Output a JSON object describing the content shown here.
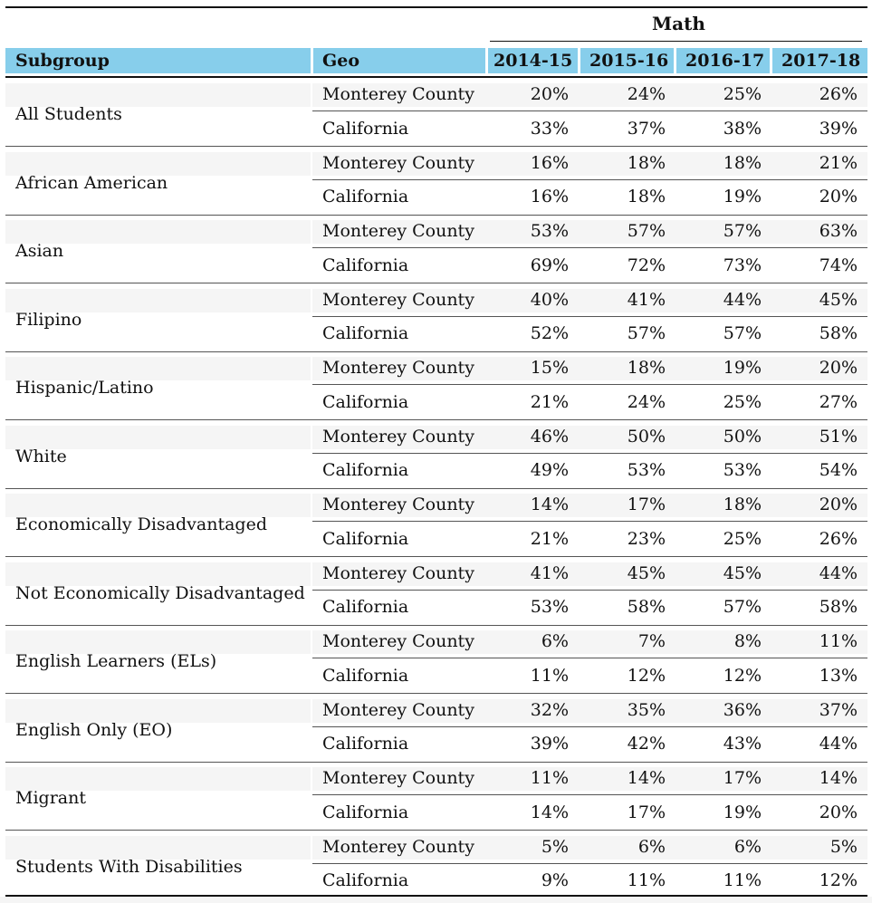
{
  "table": {
    "super_header": "Math",
    "headers": {
      "subgroup": "Subgroup",
      "geo": "Geo",
      "years": [
        "2014-15",
        "2015-16",
        "2016-17",
        "2017-18"
      ]
    },
    "groups": [
      {
        "subgroup": "All Students",
        "rows": [
          {
            "geo": "Monterey County",
            "values": [
              "20%",
              "24%",
              "25%",
              "26%"
            ]
          },
          {
            "geo": "California",
            "values": [
              "33%",
              "37%",
              "38%",
              "39%"
            ]
          }
        ]
      },
      {
        "subgroup": "African American",
        "rows": [
          {
            "geo": "Monterey County",
            "values": [
              "16%",
              "18%",
              "18%",
              "21%"
            ]
          },
          {
            "geo": "California",
            "values": [
              "16%",
              "18%",
              "19%",
              "20%"
            ]
          }
        ]
      },
      {
        "subgroup": "Asian",
        "rows": [
          {
            "geo": "Monterey County",
            "values": [
              "53%",
              "57%",
              "57%",
              "63%"
            ]
          },
          {
            "geo": "California",
            "values": [
              "69%",
              "72%",
              "73%",
              "74%"
            ]
          }
        ]
      },
      {
        "subgroup": "Filipino",
        "rows": [
          {
            "geo": "Monterey County",
            "values": [
              "40%",
              "41%",
              "44%",
              "45%"
            ]
          },
          {
            "geo": "California",
            "values": [
              "52%",
              "57%",
              "57%",
              "58%"
            ]
          }
        ]
      },
      {
        "subgroup": "Hispanic/Latino",
        "rows": [
          {
            "geo": "Monterey County",
            "values": [
              "15%",
              "18%",
              "19%",
              "20%"
            ]
          },
          {
            "geo": "California",
            "values": [
              "21%",
              "24%",
              "25%",
              "27%"
            ]
          }
        ]
      },
      {
        "subgroup": "White",
        "rows": [
          {
            "geo": "Monterey County",
            "values": [
              "46%",
              "50%",
              "50%",
              "51%"
            ]
          },
          {
            "geo": "California",
            "values": [
              "49%",
              "53%",
              "53%",
              "54%"
            ]
          }
        ]
      },
      {
        "subgroup": "Economically Disadvantaged",
        "rows": [
          {
            "geo": "Monterey County",
            "values": [
              "14%",
              "17%",
              "18%",
              "20%"
            ]
          },
          {
            "geo": "California",
            "values": [
              "21%",
              "23%",
              "25%",
              "26%"
            ]
          }
        ]
      },
      {
        "subgroup": "Not Economically Disadvantaged",
        "rows": [
          {
            "geo": "Monterey County",
            "values": [
              "41%",
              "45%",
              "45%",
              "44%"
            ]
          },
          {
            "geo": "California",
            "values": [
              "53%",
              "58%",
              "57%",
              "58%"
            ]
          }
        ]
      },
      {
        "subgroup": "English Learners (ELs)",
        "rows": [
          {
            "geo": "Monterey County",
            "values": [
              "6%",
              "7%",
              "8%",
              "11%"
            ]
          },
          {
            "geo": "California",
            "values": [
              "11%",
              "12%",
              "12%",
              "13%"
            ]
          }
        ]
      },
      {
        "subgroup": "English Only (EO)",
        "rows": [
          {
            "geo": "Monterey County",
            "values": [
              "32%",
              "35%",
              "36%",
              "37%"
            ]
          },
          {
            "geo": "California",
            "values": [
              "39%",
              "42%",
              "43%",
              "44%"
            ]
          }
        ]
      },
      {
        "subgroup": "Migrant",
        "rows": [
          {
            "geo": "Monterey County",
            "values": [
              "11%",
              "14%",
              "17%",
              "14%"
            ]
          },
          {
            "geo": "California",
            "values": [
              "14%",
              "17%",
              "19%",
              "20%"
            ]
          }
        ]
      },
      {
        "subgroup": "Students With Disabilities",
        "rows": [
          {
            "geo": "Monterey County",
            "values": [
              "5%",
              "6%",
              "6%",
              "5%"
            ]
          },
          {
            "geo": "California",
            "values": [
              "9%",
              "11%",
              "11%",
              "12%"
            ]
          }
        ]
      }
    ]
  },
  "colors": {
    "header_bg": "#87ceeb",
    "row_shade": "#f5f5f5",
    "rule": "#111111"
  }
}
